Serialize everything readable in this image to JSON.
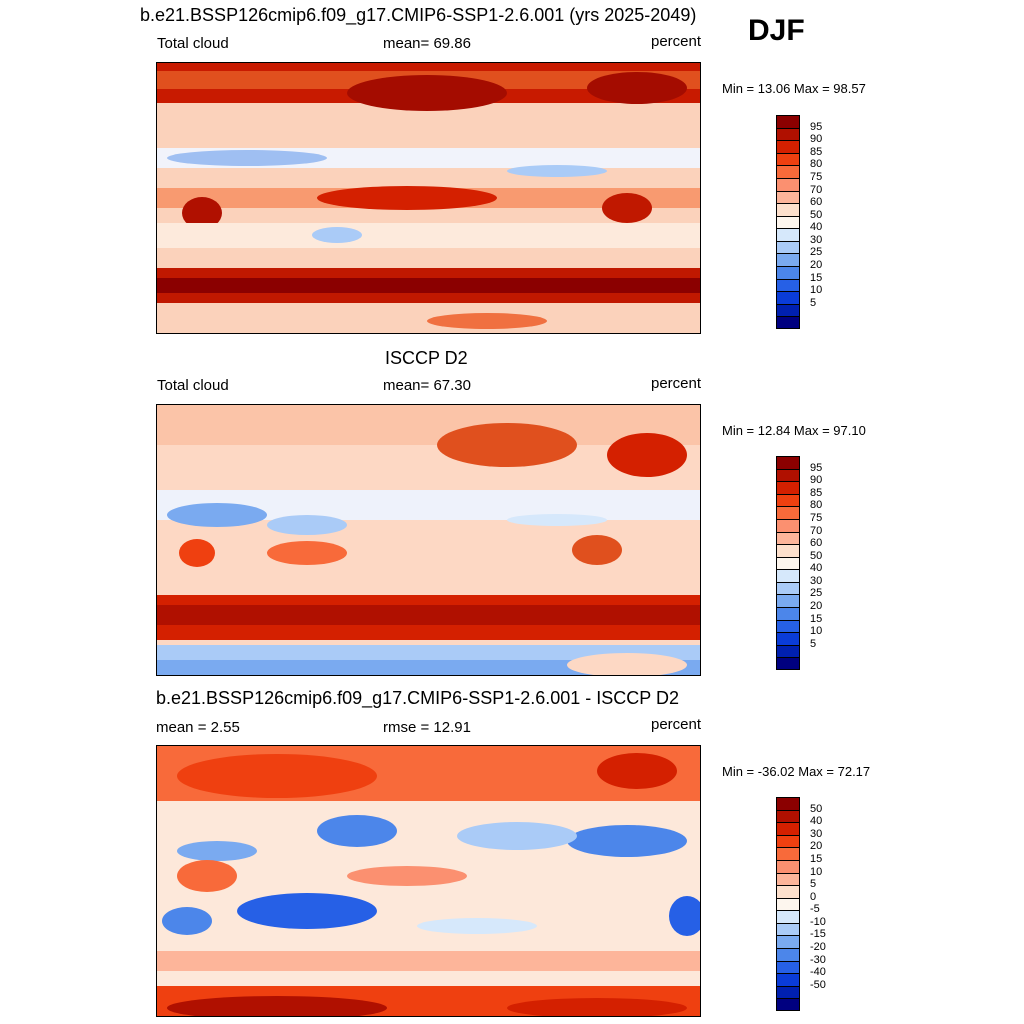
{
  "season": "DJF",
  "panels": [
    {
      "title": "b.e21.BSSP126cmip6.f09_g17.CMIP6-SSP1-2.6.001 (yrs 2025-2049)",
      "left_label": "Total cloud",
      "mid_label": "mean=  69.86",
      "right_label": "percent",
      "minmax": "Min =  13.06 Max =  98.57",
      "colorbar": {
        "labels": [
          "95",
          "90",
          "85",
          "80",
          "75",
          "70",
          "60",
          "50",
          "40",
          "30",
          "25",
          "20",
          "15",
          "10",
          "5"
        ],
        "colors": [
          "#8b0000",
          "#b01000",
          "#d42000",
          "#ef4010",
          "#f86a3a",
          "#fb9070",
          "#fdb59a",
          "#fde0cc",
          "#fdf6ee",
          "#d6e8fb",
          "#aacbf7",
          "#7aaaf0",
          "#4c86ea",
          "#2660e6",
          "#0a3cd8",
          "#0020b0",
          "#000080"
        ]
      }
    },
    {
      "title": "ISCCP D2",
      "left_label": "Total cloud",
      "mid_label": "mean=  67.30",
      "right_label": "percent",
      "minmax": "Min =  12.84 Max =  97.10",
      "colorbar": {
        "labels": [
          "95",
          "90",
          "85",
          "80",
          "75",
          "70",
          "60",
          "50",
          "40",
          "30",
          "25",
          "20",
          "15",
          "10",
          "5"
        ],
        "colors": [
          "#8b0000",
          "#b01000",
          "#d42000",
          "#ef4010",
          "#f86a3a",
          "#fb9070",
          "#fdb59a",
          "#fde0cc",
          "#fdf6ee",
          "#d6e8fb",
          "#aacbf7",
          "#7aaaf0",
          "#4c86ea",
          "#2660e6",
          "#0a3cd8",
          "#0020b0",
          "#000080"
        ]
      }
    },
    {
      "title": "b.e21.BSSP126cmip6.f09_g17.CMIP6-SSP1-2.6.001 - ISCCP D2",
      "left_label": "mean =   2.55",
      "mid_label": "rmse =  12.91",
      "right_label": "percent",
      "minmax": "Min = -36.02 Max =  72.17",
      "colorbar": {
        "labels": [
          "50",
          "40",
          "30",
          "20",
          "15",
          "10",
          "5",
          "0",
          "-5",
          "-10",
          "-15",
          "-20",
          "-30",
          "-40",
          "-50"
        ],
        "colors": [
          "#8b0000",
          "#b01000",
          "#d42000",
          "#ef4010",
          "#f86a3a",
          "#fb9070",
          "#fdb59a",
          "#fde0cc",
          "#fdf6ee",
          "#d6e8fb",
          "#aacbf7",
          "#7aaaf0",
          "#4c86ea",
          "#2660e6",
          "#0a3cd8",
          "#0020b0",
          "#000080"
        ]
      }
    }
  ]
}
